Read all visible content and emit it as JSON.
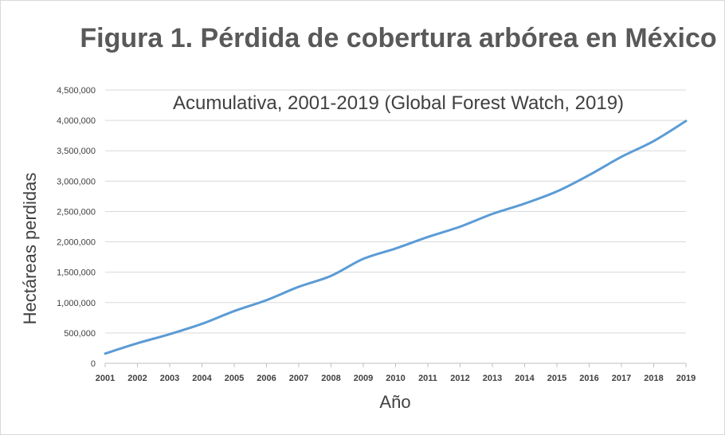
{
  "chart_data": {
    "type": "line",
    "title": "Figura 1. Pérdida de cobertura arbórea en México",
    "subtitle": "Acumulativa, 2001-2019  (Global Forest Watch, 2019)",
    "xlabel": "Año",
    "ylabel": "Hectáreas perdidas",
    "x": [
      "2001",
      "2002",
      "2003",
      "2004",
      "2005",
      "2006",
      "2007",
      "2008",
      "2009",
      "2010",
      "2011",
      "2012",
      "2013",
      "2014",
      "2015",
      "2016",
      "2017",
      "2018",
      "2019"
    ],
    "series": [
      {
        "values": [
          160000,
          330000,
          480000,
          650000,
          860000,
          1040000,
          1260000,
          1440000,
          1720000,
          1890000,
          2080000,
          2250000,
          2460000,
          2630000,
          2830000,
          3100000,
          3400000,
          3660000,
          3990000
        ],
        "color": "#5b9bd5"
      }
    ],
    "ylim": [
      0,
      4500000
    ],
    "yticks": [
      "0",
      "500,000",
      "1,000,000",
      "1,500,000",
      "2,000,000",
      "2,500,000",
      "3,000,000",
      "3,500,000",
      "4,000,000",
      "4,500,000"
    ],
    "grid": true,
    "gridColor": "#d9d9d9",
    "axisColor": "#bfbfbf"
  }
}
